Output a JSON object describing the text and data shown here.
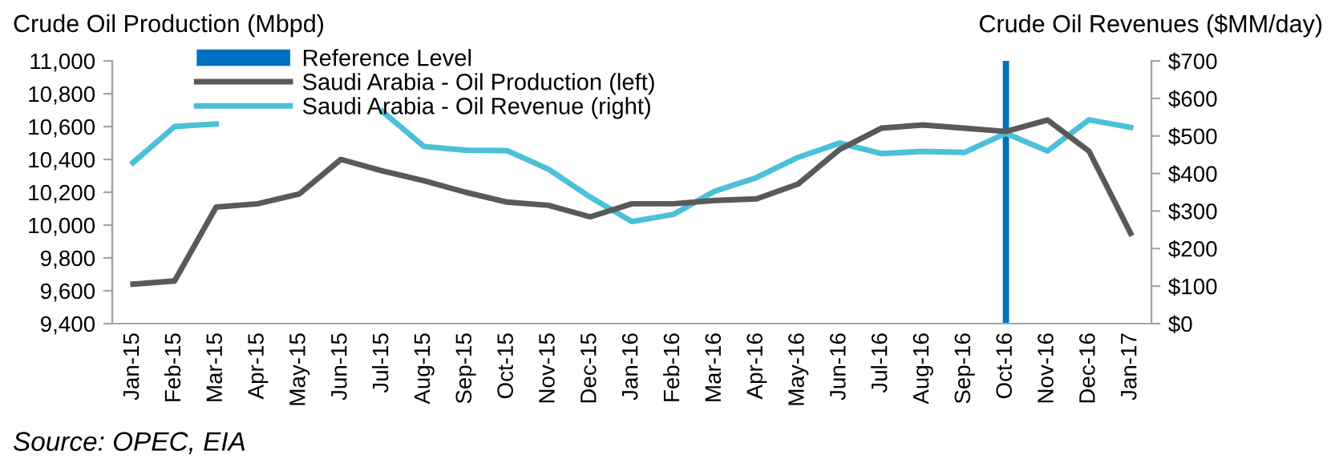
{
  "chart_data": {
    "type": "line",
    "categories": [
      "Jan-15",
      "Feb-15",
      "Mar-15",
      "Apr-15",
      "May-15",
      "Jun-15",
      "Jul-15",
      "Aug-15",
      "Sep-15",
      "Oct-15",
      "Nov-15",
      "Dec-15",
      "Jan-16",
      "Feb-16",
      "Mar-16",
      "Apr-16",
      "May-16",
      "Jun-16",
      "Jul-16",
      "Aug-16",
      "Sep-16",
      "Oct-16",
      "Nov-16",
      "Dec-16",
      "Jan-17"
    ],
    "ylabel": "Crude Oil Production (Mbpd)",
    "y2label": "Crude Oil Revenues ($MM/day)",
    "series": [
      {
        "name": "Reference Level",
        "type": "bar",
        "color": "#0070c0",
        "axis": "y2",
        "values": [
          null,
          null,
          null,
          null,
          null,
          null,
          null,
          null,
          null,
          null,
          null,
          null,
          null,
          null,
          null,
          null,
          null,
          null,
          null,
          null,
          null,
          700,
          null,
          null,
          null
        ]
      },
      {
        "name": "Saudi Arabia - Oil Production (left)",
        "color": "#595959",
        "values": [
          9640,
          9660,
          10110,
          10130,
          10190,
          10400,
          10330,
          10270,
          10200,
          10140,
          10120,
          10050,
          10130,
          10130,
          10150,
          10160,
          10250,
          10460,
          10590,
          10610,
          10590,
          10570,
          10640,
          10450,
          9950
        ]
      },
      {
        "name": "Saudi Arabia - Oil Revenue (right)",
        "color": "#4bc0d9",
        "axis": "y2",
        "values": [
          429,
          525,
          532,
          null,
          null,
          null,
          565,
          472,
          462,
          461,
          411,
          337,
          272,
          291,
          353,
          389,
          443,
          481,
          453,
          459,
          456,
          507,
          460,
          543,
          523
        ]
      }
    ],
    "ylim": [
      9400,
      11000
    ],
    "yticks": [
      {
        "value": 9400,
        "label": "9,400"
      },
      {
        "value": 9600,
        "label": "9,600"
      },
      {
        "value": 9800,
        "label": "9,800"
      },
      {
        "value": 10000,
        "label": "10,000"
      },
      {
        "value": 10200,
        "label": "10,200"
      },
      {
        "value": 10400,
        "label": "10,400"
      },
      {
        "value": 10600,
        "label": "10,600"
      },
      {
        "value": 10800,
        "label": "10,800"
      },
      {
        "value": 11000,
        "label": "11,000"
      }
    ],
    "y2lim": [
      0,
      700
    ],
    "y2ticks": [
      {
        "value": 0,
        "label": "$0"
      },
      {
        "value": 100,
        "label": "$100"
      },
      {
        "value": 200,
        "label": "$200"
      },
      {
        "value": 300,
        "label": "$300"
      },
      {
        "value": 400,
        "label": "$400"
      },
      {
        "value": 500,
        "label": "$500"
      },
      {
        "value": 600,
        "label": "$600"
      },
      {
        "value": 700,
        "label": "$700"
      }
    ],
    "grid": false,
    "legend": "top left",
    "marker": "none",
    "line_style": "solid",
    "annotations": [
      "Source: OPEC, EIA"
    ]
  }
}
